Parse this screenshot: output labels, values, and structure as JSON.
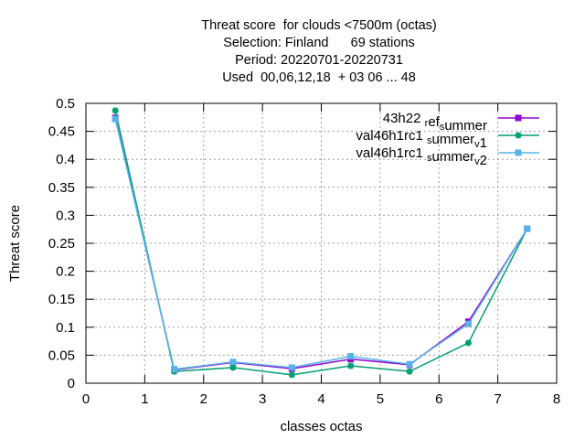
{
  "chart_data": {
    "type": "line",
    "title_lines": [
      "Threat score  for clouds <7500m (octas)",
      "Selection: Finland      69 stations",
      "Period: 20220701-20220731",
      "Used  00,06,12,18  + 03 06 ... 48"
    ],
    "xlabel": "classes octas",
    "ylabel": "Threat score",
    "xlim": [
      0,
      8
    ],
    "ylim": [
      0,
      0.5
    ],
    "xticks": [
      "0",
      "1",
      "2",
      "3",
      "4",
      "5",
      "6",
      "7",
      "8"
    ],
    "yticks": [
      "0",
      "0.05",
      "0.1",
      "0.15",
      "0.2",
      "0.25",
      "0.3",
      "0.35",
      "0.4",
      "0.45",
      "0.5"
    ],
    "grid": true,
    "legend_position": "top-right",
    "x": [
      0.5,
      1.5,
      2.5,
      3.5,
      4.5,
      5.5,
      6.5,
      7.5
    ],
    "series": [
      {
        "name": "43h22_ref_summer",
        "legend_parts": [
          [
            "43h22 ",
            ""
          ],
          [
            "r",
            "sub"
          ],
          [
            "ef",
            ""
          ],
          [
            "s",
            "sub"
          ],
          [
            "ummer",
            ""
          ]
        ],
        "color": "#9400d3",
        "marker": "square",
        "values": [
          0.474,
          0.024,
          0.037,
          0.026,
          0.043,
          0.033,
          0.11,
          0.276
        ]
      },
      {
        "name": "val46h1rc1_summer_v1",
        "legend_parts": [
          [
            "val46h1rc1 ",
            ""
          ],
          [
            "s",
            "sub"
          ],
          [
            "ummer",
            ""
          ],
          [
            "v",
            "sub"
          ],
          [
            "1",
            ""
          ]
        ],
        "color": "#009e73",
        "marker": "star",
        "values": [
          0.487,
          0.021,
          0.028,
          0.015,
          0.031,
          0.021,
          0.072,
          0.276
        ]
      },
      {
        "name": "val46h1rc1_summer_v2",
        "legend_parts": [
          [
            "val46h1rc1 ",
            ""
          ],
          [
            "s",
            "sub"
          ],
          [
            "ummer",
            ""
          ],
          [
            "v",
            "sub"
          ],
          [
            "2",
            ""
          ]
        ],
        "color": "#56b4e9",
        "marker": "square",
        "values": [
          0.472,
          0.025,
          0.038,
          0.028,
          0.048,
          0.034,
          0.106,
          0.276
        ]
      }
    ]
  }
}
